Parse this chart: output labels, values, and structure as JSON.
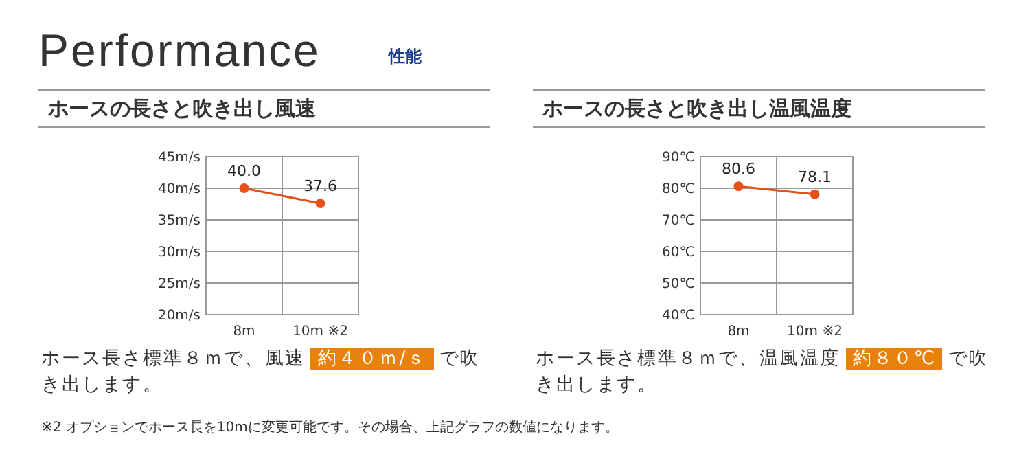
{
  "chart_data": [
    {
      "type": "other",
      "title": "Performance",
      "subtitle": "性能",
      "annotations": [
        "※2  オプションでホース長を10mに変更可能です。その場合、上記グラフの数値になります。"
      ]
    },
    {
      "type": "line",
      "title": "ホースの長さと吹き出し風速",
      "categories": [
        "8m",
        "10m ※2"
      ],
      "series": [
        {
          "color": "#e8501a",
          "values": [
            40.0,
            37.6
          ],
          "value_labels": [
            "40.0",
            "37.6"
          ]
        }
      ],
      "ylim": [
        20,
        45
      ],
      "yticks": [
        {
          "value": 20,
          "label": "20m/s"
        },
        {
          "value": 25,
          "label": "25m/s"
        },
        {
          "value": 30,
          "label": "30m/s"
        },
        {
          "value": 35,
          "label": "35m/s"
        },
        {
          "value": 40,
          "label": "40m/s"
        },
        {
          "value": 45,
          "label": "45m/s"
        }
      ],
      "grid": true,
      "marker": "circle",
      "annotations": [
        "ホース長さ標準８ｍで、風速",
        "約４０ｍ/ｓ",
        "で吹き出します。"
      ]
    },
    {
      "type": "line",
      "title": "ホースの長さと吹き出し温風温度",
      "categories": [
        "8m",
        "10m ※2"
      ],
      "series": [
        {
          "color": "#e8501a",
          "values": [
            80.6,
            78.1
          ],
          "value_labels": [
            "80.6",
            "78.1"
          ]
        }
      ],
      "ylim": [
        40,
        90
      ],
      "yticks": [
        {
          "value": 40,
          "label": "40℃"
        },
        {
          "value": 50,
          "label": "50℃"
        },
        {
          "value": 60,
          "label": "60℃"
        },
        {
          "value": 70,
          "label": "70℃"
        },
        {
          "value": 80,
          "label": "80℃"
        },
        {
          "value": 90,
          "label": "90℃"
        }
      ],
      "grid": true,
      "marker": "circle",
      "annotations": [
        "ホース長さ標準８ｍで、温風温度",
        "約８０℃",
        "で吹き出します。"
      ]
    }
  ]
}
